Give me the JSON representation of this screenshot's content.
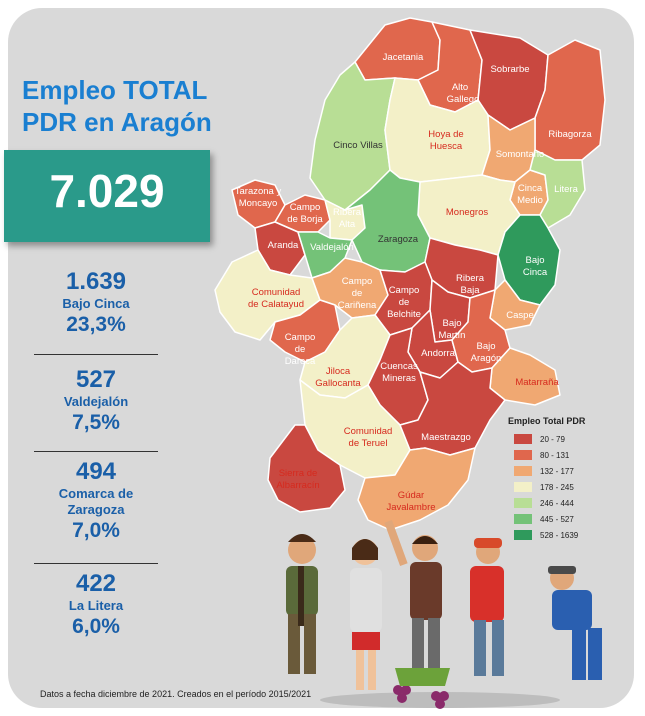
{
  "title": {
    "line1": "Empleo TOTAL",
    "line2": "PDR en Aragón"
  },
  "total": "7.029",
  "stats": [
    {
      "value": "1.639",
      "name": "Bajo Cinca",
      "pct": "23,3%"
    },
    {
      "value": "527",
      "name": "Valdejalón",
      "pct": "7,5%"
    },
    {
      "value": "494",
      "name": "Comarca de Zaragoza",
      "pct": "7,0%"
    },
    {
      "value": "422",
      "name": "La Litera",
      "pct": "6,0%"
    }
  ],
  "legend": {
    "title": "Empleo Total PDR",
    "items": [
      {
        "label": "20 - 79",
        "color": "#c94840"
      },
      {
        "label": "80 - 131",
        "color": "#e0674d"
      },
      {
        "label": "132 - 177",
        "color": "#f0a872"
      },
      {
        "label": "178 - 245",
        "color": "#f3f0c8"
      },
      {
        "label": "246 - 444",
        "color": "#b8de95"
      },
      {
        "label": "445 - 527",
        "color": "#74c278"
      },
      {
        "label": "528 - 1639",
        "color": "#2f9a5c"
      }
    ]
  },
  "regions": [
    {
      "name": "Jacetania",
      "color": "#e0674d"
    },
    {
      "name": "Alto Gallego",
      "color": "#e0674d"
    },
    {
      "name": "Sobrarbe",
      "color": "#c94840"
    },
    {
      "name": "Ribagorza",
      "color": "#e0674d"
    },
    {
      "name": "Cinco Villas",
      "color": "#b8de95"
    },
    {
      "name": "Hoya de Huesca",
      "color": "#f3f0c8"
    },
    {
      "name": "Somontano",
      "color": "#f0a872"
    },
    {
      "name": "Cinca Medio",
      "color": "#f0a872"
    },
    {
      "name": "Litera",
      "color": "#b8de95"
    },
    {
      "name": "Tarazona y Moncayo",
      "color": "#e0674d"
    },
    {
      "name": "Campo de Borja",
      "color": "#e0674d"
    },
    {
      "name": "Ribera Alta",
      "color": "#f3f0c8"
    },
    {
      "name": "Monegros",
      "color": "#f3f0c8"
    },
    {
      "name": "Aranda",
      "color": "#c94840"
    },
    {
      "name": "Valdejalón",
      "color": "#74c278"
    },
    {
      "name": "Zaragoza",
      "color": "#74c278"
    },
    {
      "name": "Bajo Cinca",
      "color": "#2f9a5c"
    },
    {
      "name": "Ribera Baja",
      "color": "#c94840"
    },
    {
      "name": "Comunidad de Calatayud",
      "color": "#f3f0c8"
    },
    {
      "name": "Campo de Cariñena",
      "color": "#f0a872"
    },
    {
      "name": "Campo de Belchite",
      "color": "#c94840"
    },
    {
      "name": "Caspe",
      "color": "#f0a872"
    },
    {
      "name": "Campo de Daroca",
      "color": "#e0674d"
    },
    {
      "name": "Bajo Martín",
      "color": "#c94840"
    },
    {
      "name": "Andorra",
      "color": "#c94840"
    },
    {
      "name": "Bajo Aragón",
      "color": "#e0674d"
    },
    {
      "name": "Jiloca",
      "color": "#f3f0c8"
    },
    {
      "name": "Gallocanta",
      "color": "#f3f0c8"
    },
    {
      "name": "Cuencas Mineras",
      "color": "#c94840"
    },
    {
      "name": "Matarraña",
      "color": "#f0a872"
    },
    {
      "name": "Comunidad de Teruel",
      "color": "#f3f0c8"
    },
    {
      "name": "Maestrazgo",
      "color": "#c94840"
    },
    {
      "name": "Sierra de Albarracín",
      "color": "#c94840"
    },
    {
      "name": "Gúdar Javalambre",
      "color": "#f0a872"
    }
  ],
  "footer": "Datos a fecha diciembre de 2021. Creados en el período 2015/2021"
}
